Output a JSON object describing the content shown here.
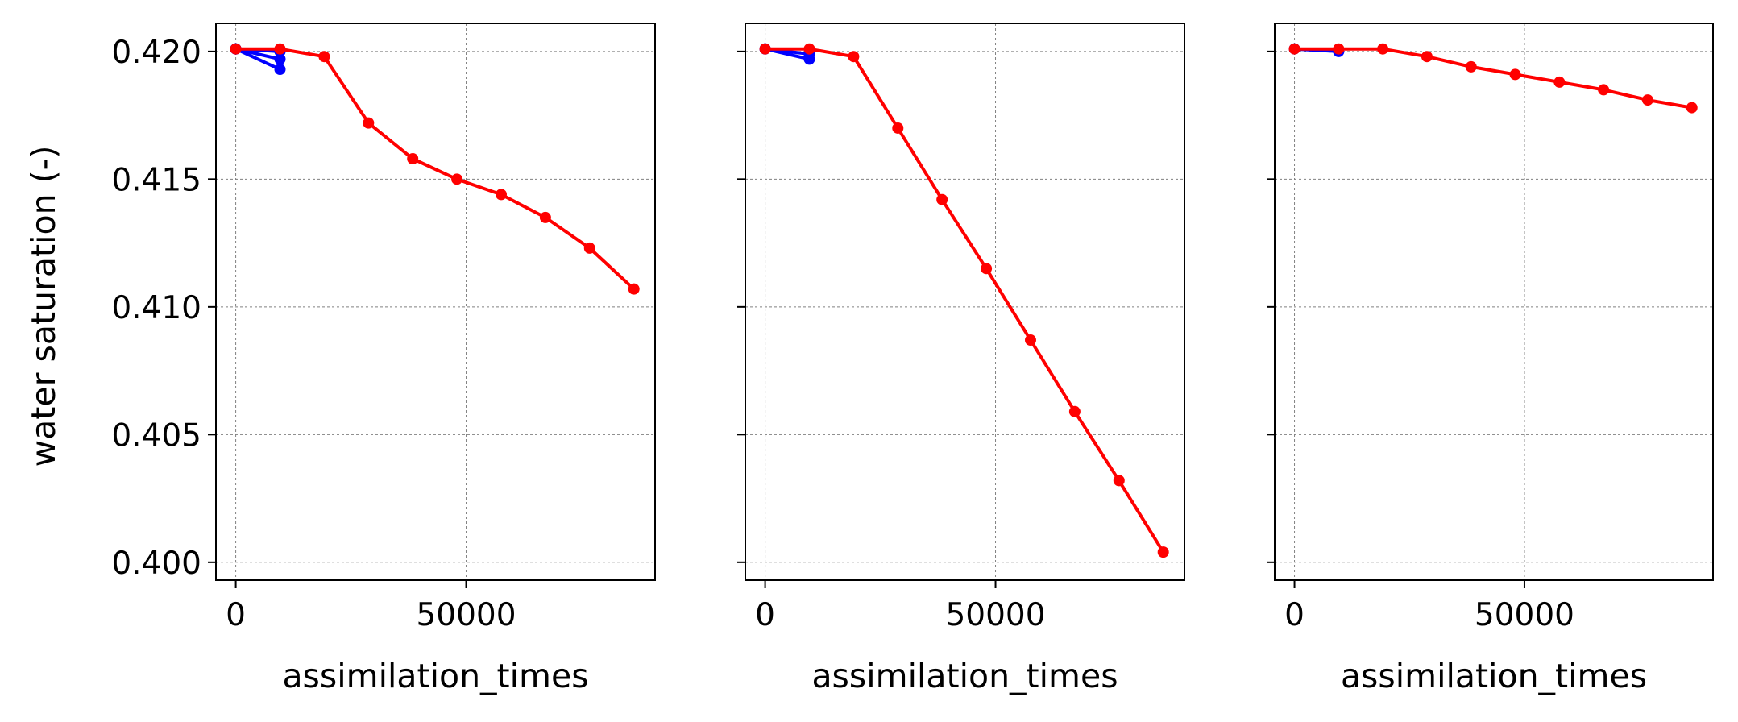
{
  "figure": {
    "ylabel": "water saturation (-)",
    "grid_color": "#808080",
    "series_colors": [
      "#0000ff",
      "#ff0000"
    ]
  },
  "chart_data": [
    {
      "type": "line",
      "title": "",
      "xlabel": "assimilation_times",
      "ylabel": "water saturation (-)",
      "xlim": [
        -4300,
        91000
      ],
      "ylim": [
        0.3993,
        0.4211
      ],
      "xticks": [
        0,
        50000
      ],
      "xtick_labels": [
        "0",
        "50000"
      ],
      "yticks": [
        0.4,
        0.405,
        0.41,
        0.415,
        0.42
      ],
      "ytick_labels": [
        "0.400",
        "0.405",
        "0.410",
        "0.415",
        "0.420"
      ],
      "grid": true,
      "series": [
        {
          "color": "#0000ff",
          "points": [
            [
              0,
              0.4201
            ],
            [
              9600,
              0.4193
            ]
          ]
        },
        {
          "color": "#0000ff",
          "points": [
            [
              0,
              0.4201
            ],
            [
              9600,
              0.4197
            ]
          ]
        },
        {
          "color": "#0000ff",
          "points": [
            [
              0,
              0.4201
            ],
            [
              9600,
              0.42
            ]
          ]
        },
        {
          "color": "#ff0000",
          "points": [
            [
              0,
              0.4201
            ],
            [
              9600,
              0.4201
            ],
            [
              19200,
              0.4198
            ],
            [
              28800,
              0.4172
            ],
            [
              38400,
              0.4158
            ],
            [
              48000,
              0.415
            ],
            [
              57600,
              0.4144
            ],
            [
              67200,
              0.4135
            ],
            [
              76800,
              0.4123
            ],
            [
              86400,
              0.4107
            ]
          ]
        }
      ]
    },
    {
      "type": "line",
      "title": "",
      "xlabel": "assimilation_times",
      "xlim": [
        -4300,
        91000
      ],
      "ylim": [
        0.3993,
        0.4211
      ],
      "xticks": [
        0,
        50000
      ],
      "xtick_labels": [
        "0",
        "50000"
      ],
      "yticks": [
        0.4,
        0.405,
        0.41,
        0.415,
        0.42
      ],
      "grid": true,
      "series": [
        {
          "color": "#0000ff",
          "points": [
            [
              0,
              0.4201
            ],
            [
              9600,
              0.4197
            ]
          ]
        },
        {
          "color": "#0000ff",
          "points": [
            [
              0,
              0.4201
            ],
            [
              9600,
              0.4199
            ]
          ]
        },
        {
          "color": "#ff0000",
          "points": [
            [
              0,
              0.4201
            ],
            [
              9600,
              0.4201
            ],
            [
              19200,
              0.4198
            ],
            [
              28800,
              0.417
            ],
            [
              38400,
              0.4142
            ],
            [
              48000,
              0.4115
            ],
            [
              57600,
              0.4087
            ],
            [
              67200,
              0.4059
            ],
            [
              76800,
              0.4032
            ],
            [
              86400,
              0.4004
            ]
          ]
        }
      ]
    },
    {
      "type": "line",
      "title": "",
      "xlabel": "assimilation_times",
      "xlim": [
        -4300,
        91000
      ],
      "ylim": [
        0.3993,
        0.4211
      ],
      "xticks": [
        0,
        50000
      ],
      "xtick_labels": [
        "0",
        "50000"
      ],
      "yticks": [
        0.4,
        0.405,
        0.41,
        0.415,
        0.42
      ],
      "grid": true,
      "series": [
        {
          "color": "#0000ff",
          "points": [
            [
              0,
              0.4201
            ],
            [
              9600,
              0.42
            ]
          ]
        },
        {
          "color": "#ff0000",
          "points": [
            [
              0,
              0.4201
            ],
            [
              9600,
              0.4201
            ],
            [
              19200,
              0.4201
            ],
            [
              28800,
              0.4198
            ],
            [
              38400,
              0.4194
            ],
            [
              48000,
              0.4191
            ],
            [
              57600,
              0.4188
            ],
            [
              67200,
              0.4185
            ],
            [
              76800,
              0.4181
            ],
            [
              86400,
              0.4178
            ]
          ]
        }
      ]
    }
  ]
}
